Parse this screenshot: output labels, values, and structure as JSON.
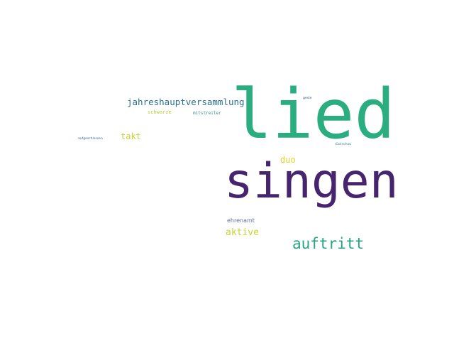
{
  "words": {
    "lied": {
      "text": "lied",
      "color": "#2aae7f"
    },
    "singen": {
      "text": "singen",
      "color": "#46246e"
    },
    "auftritt": {
      "text": "auftritt",
      "color": "#2aa383"
    },
    "jahreshauptversammlung": {
      "text": "jahreshauptversammlung",
      "color": "#2a6f8e"
    },
    "takt": {
      "text": "takt",
      "color": "#c7d333"
    },
    "duo": {
      "text": "duo",
      "color": "#dcd52c"
    },
    "aktive": {
      "text": "aktive",
      "color": "#c6d62f"
    },
    "ehrenamt": {
      "text": "ehrenamt",
      "color": "#5c6e99"
    },
    "schwarze": {
      "text": "schwarze",
      "color": "#b8cf3a"
    },
    "mitstreiter": {
      "text": "mitstreiter",
      "color": "#3b8f8c"
    },
    "aufgeschlossen": {
      "text": "aufgeschlossen",
      "color": "#2d6e8c"
    },
    "geste": {
      "text": "geste",
      "color": "#3a4f8a"
    },
    "rueckschau": {
      "text": "rückschau",
      "color": "#2f7d8e"
    }
  }
}
